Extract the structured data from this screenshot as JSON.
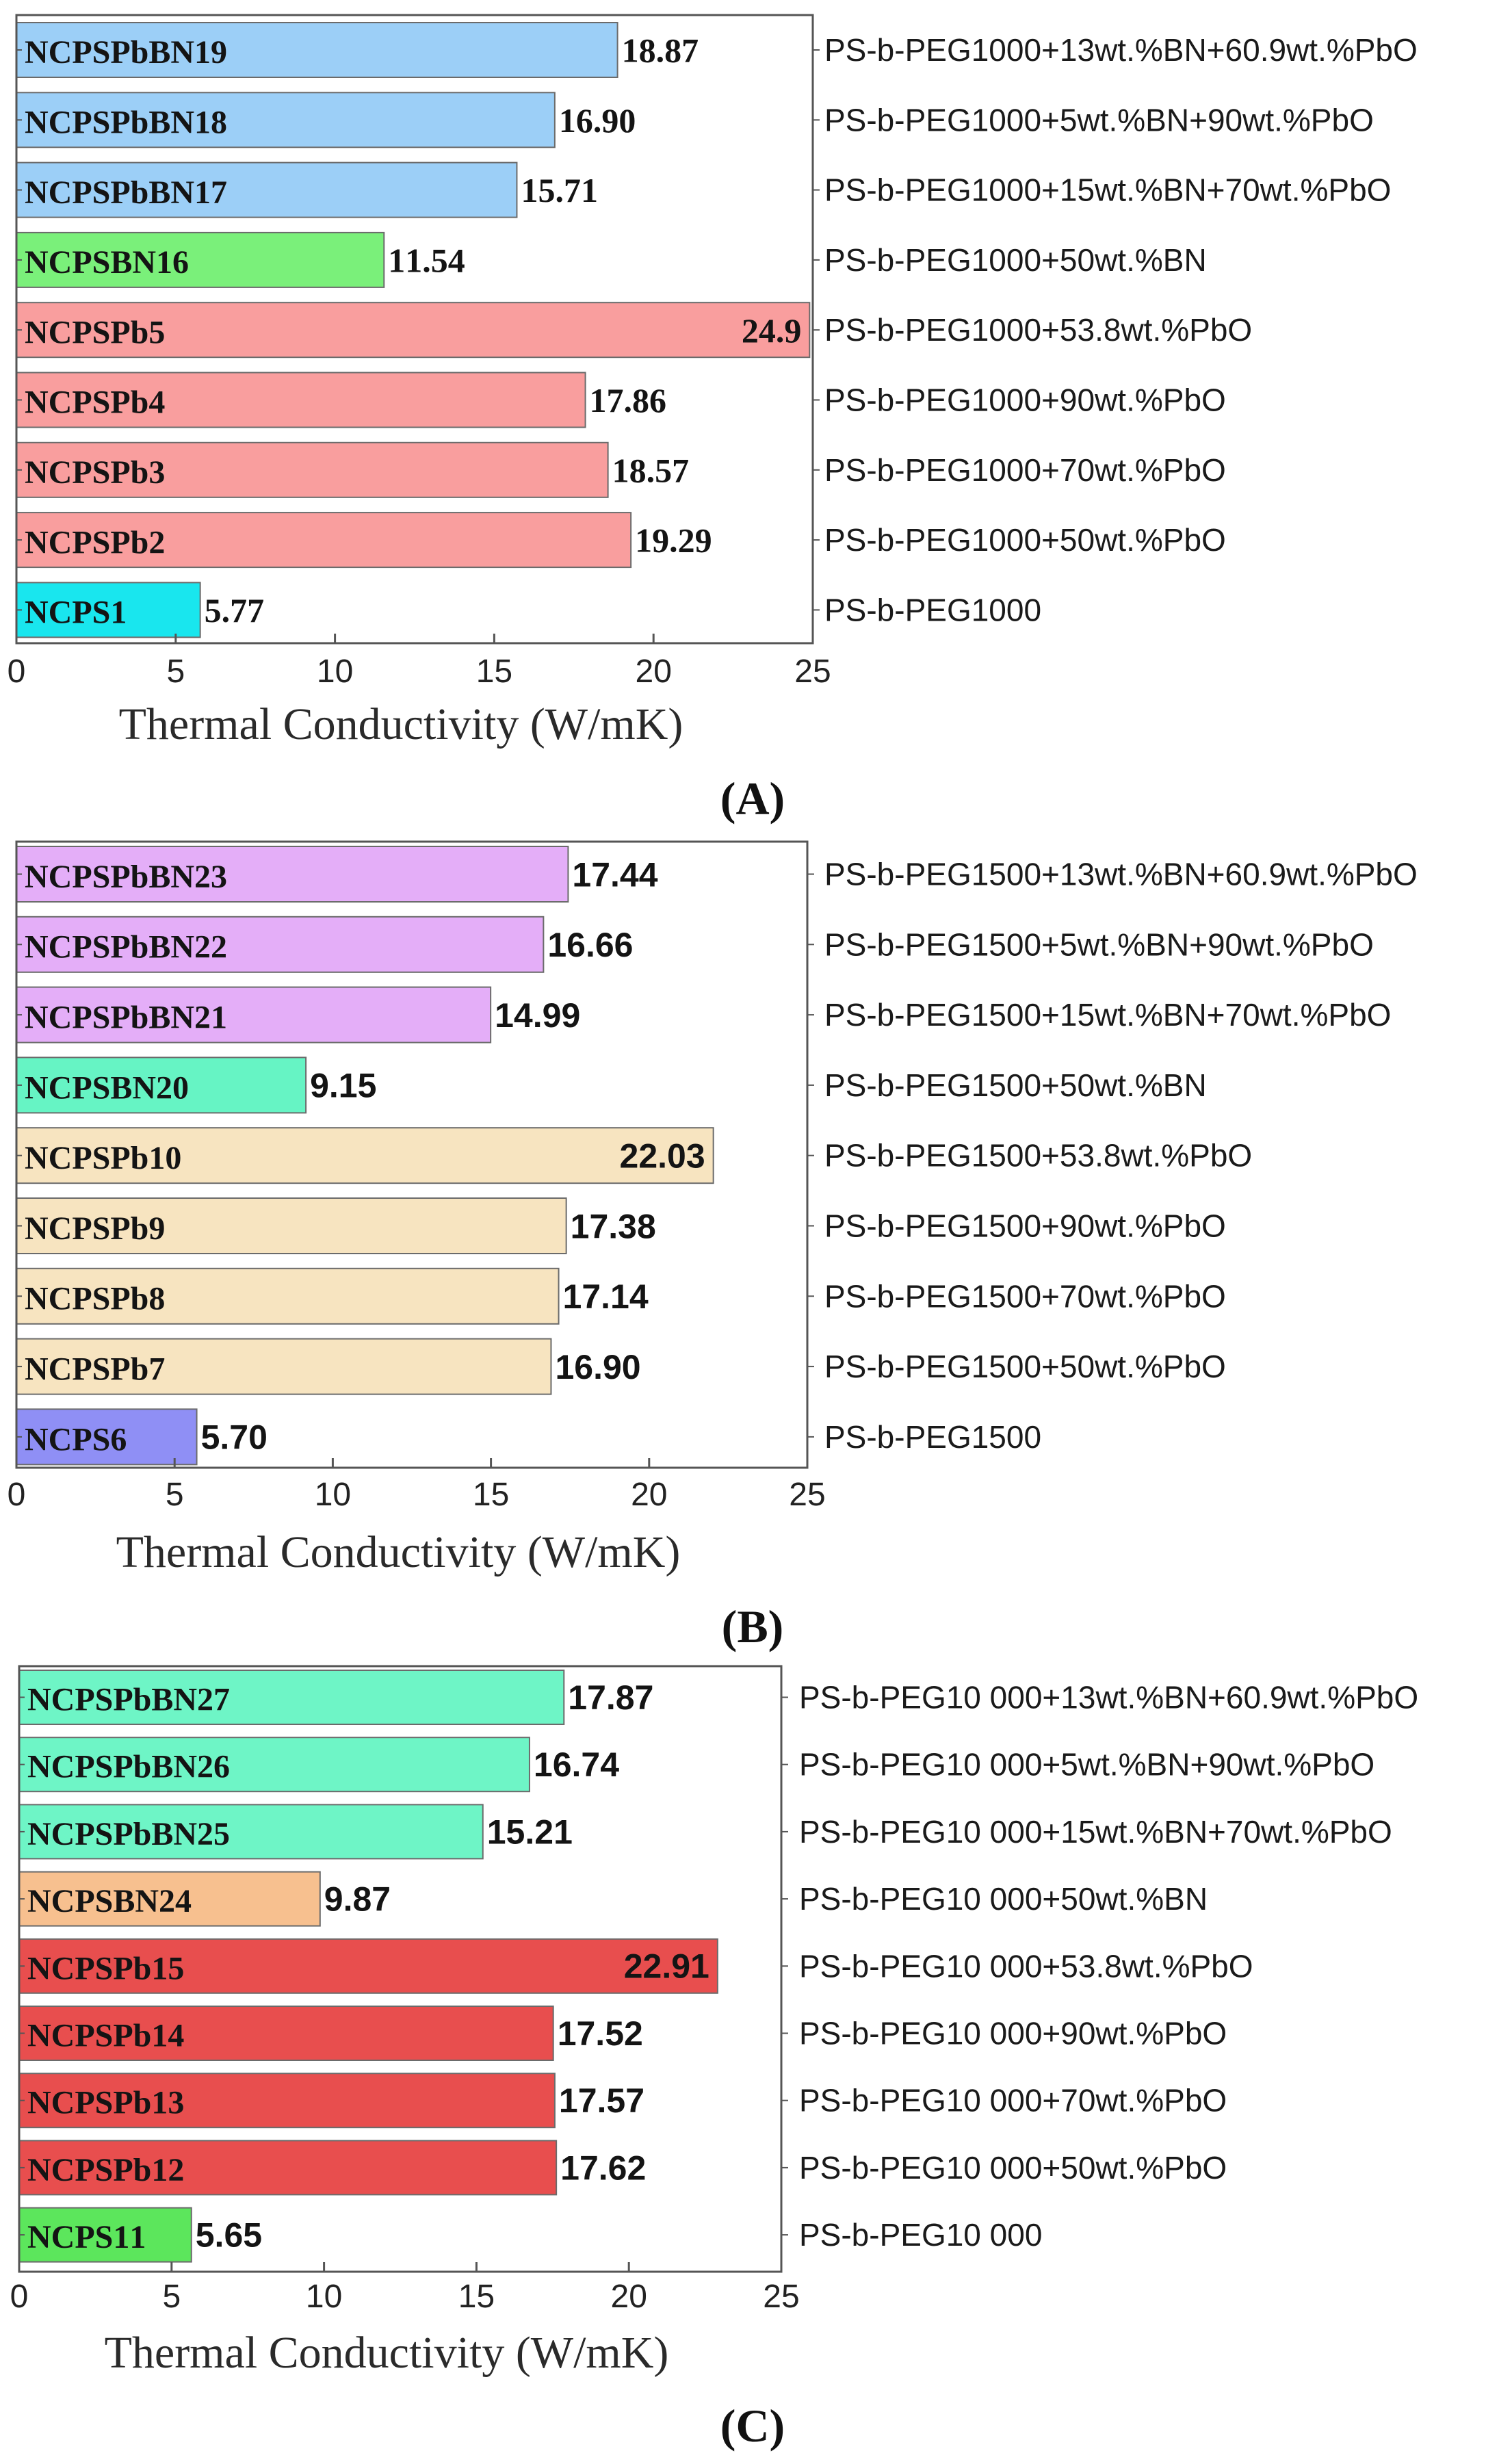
{
  "figure": {
    "xmax": 25,
    "tick_step": 5
  },
  "chart_data": [
    {
      "type": "bar",
      "orientation": "horizontal",
      "panel_label": "(A)",
      "xlabel": "Thermal Conductivity (W/mK)",
      "xlim": [
        0,
        25
      ],
      "xticks": [
        "0",
        "5",
        "10",
        "15",
        "20",
        "25"
      ],
      "label_font": "serif",
      "categories": [
        "NCPSPbBN19",
        "NCPSPbBN18",
        "NCPSPbBN17",
        "NCPSBN16",
        "NCPSPb5",
        "NCPSPb4",
        "NCPSPb3",
        "NCPSPb2",
        "NCPS1"
      ],
      "values": [
        18.87,
        16.9,
        15.71,
        11.54,
        24.9,
        17.86,
        18.57,
        19.29,
        5.77
      ],
      "value_labels": [
        "18.87",
        "16.90",
        "15.71",
        "11.54",
        "24.9",
        "17.86",
        "18.57",
        "19.29",
        "5.77"
      ],
      "value_inside": [
        false,
        false,
        false,
        false,
        true,
        false,
        false,
        false,
        false
      ],
      "compositions": [
        "PS-b-PEG1000+13wt.%BN+60.9wt.%PbO",
        "PS-b-PEG1000+5wt.%BN+90wt.%PbO",
        "PS-b-PEG1000+15wt.%BN+70wt.%PbO",
        "PS-b-PEG1000+50wt.%BN",
        "PS-b-PEG1000+53.8wt.%PbO",
        "PS-b-PEG1000+90wt.%PbO",
        "PS-b-PEG1000+70wt.%PbO",
        "PS-b-PEG1000+50wt.%PbO",
        "PS-b-PEG1000"
      ],
      "colors": [
        "#9ccff7",
        "#9ccff7",
        "#9ccff7",
        "#7af07a",
        "#f99e9e",
        "#f99e9e",
        "#f99e9e",
        "#f99e9e",
        "#19e6ee"
      ]
    },
    {
      "type": "bar",
      "orientation": "horizontal",
      "panel_label": "(B)",
      "xlabel": "Thermal Conductivity (W/mK)",
      "xlim": [
        0,
        25
      ],
      "xticks": [
        "0",
        "5",
        "10",
        "15",
        "20",
        "25"
      ],
      "label_font": "sans",
      "categories": [
        "NCPSPbBN23",
        "NCPSPbBN22",
        "NCPSPbBN21",
        "NCPSBN20",
        "NCPSPb10",
        "NCPSPb9",
        "NCPSPb8",
        "NCPSPb7",
        "NCPS6"
      ],
      "values": [
        17.44,
        16.66,
        14.99,
        9.15,
        22.03,
        17.38,
        17.14,
        16.9,
        5.7
      ],
      "value_labels": [
        "17.44",
        "16.66",
        "14.99",
        "9.15",
        "22.03",
        "17.38",
        "17.14",
        "16.90",
        "5.70"
      ],
      "value_inside": [
        false,
        false,
        false,
        false,
        true,
        false,
        false,
        false,
        false
      ],
      "compositions": [
        "PS-b-PEG1500+13wt.%BN+60.9wt.%PbO",
        "PS-b-PEG1500+5wt.%BN+90wt.%PbO",
        "PS-b-PEG1500+15wt.%BN+70wt.%PbO",
        "PS-b-PEG1500+50wt.%BN",
        "PS-b-PEG1500+53.8wt.%PbO",
        "PS-b-PEG1500+90wt.%PbO",
        "PS-b-PEG1500+70wt.%PbO",
        "PS-b-PEG1500+50wt.%PbO",
        "PS-b-PEG1500"
      ],
      "colors": [
        "#e4aef8",
        "#e4aef8",
        "#e4aef8",
        "#66f4c4",
        "#f7e4c0",
        "#f7e4c0",
        "#f7e4c0",
        "#f7e4c0",
        "#8f8ff5"
      ]
    },
    {
      "type": "bar",
      "orientation": "horizontal",
      "panel_label": "(C)",
      "xlabel": "Thermal Conductivity (W/mK)",
      "xlim": [
        0,
        25
      ],
      "xticks": [
        "0",
        "5",
        "10",
        "15",
        "20",
        "25"
      ],
      "label_font": "sans",
      "categories": [
        "NCPSPbBN27",
        "NCPSPbBN26",
        "NCPSPbBN25",
        "NCPSBN24",
        "NCPSPb15",
        "NCPSPb14",
        "NCPSPb13",
        "NCPSPb12",
        "NCPS11"
      ],
      "values": [
        17.87,
        16.74,
        15.21,
        9.87,
        22.91,
        17.52,
        17.57,
        17.62,
        5.65
      ],
      "value_labels": [
        "17.87",
        "16.74",
        "15.21",
        "9.87",
        "22.91",
        "17.52",
        "17.57",
        "17.62",
        "5.65"
      ],
      "value_inside": [
        false,
        false,
        false,
        false,
        true,
        false,
        false,
        false,
        false
      ],
      "compositions": [
        "PS-b-PEG10 000+13wt.%BN+60.9wt.%PbO",
        "PS-b-PEG10 000+5wt.%BN+90wt.%PbO",
        "PS-b-PEG10 000+15wt.%BN+70wt.%PbO",
        "PS-b-PEG10 000+50wt.%BN",
        "PS-b-PEG10 000+53.8wt.%PbO",
        "PS-b-PEG10 000+90wt.%PbO",
        "PS-b-PEG10 000+70wt.%PbO",
        "PS-b-PEG10 000+50wt.%PbO",
        "PS-b-PEG10 000"
      ],
      "colors": [
        "#6ef5c6",
        "#6ef5c6",
        "#6ef5c6",
        "#f7c08f",
        "#e84e4e",
        "#e84e4e",
        "#e84e4e",
        "#e84e4e",
        "#5ce65c"
      ]
    }
  ]
}
